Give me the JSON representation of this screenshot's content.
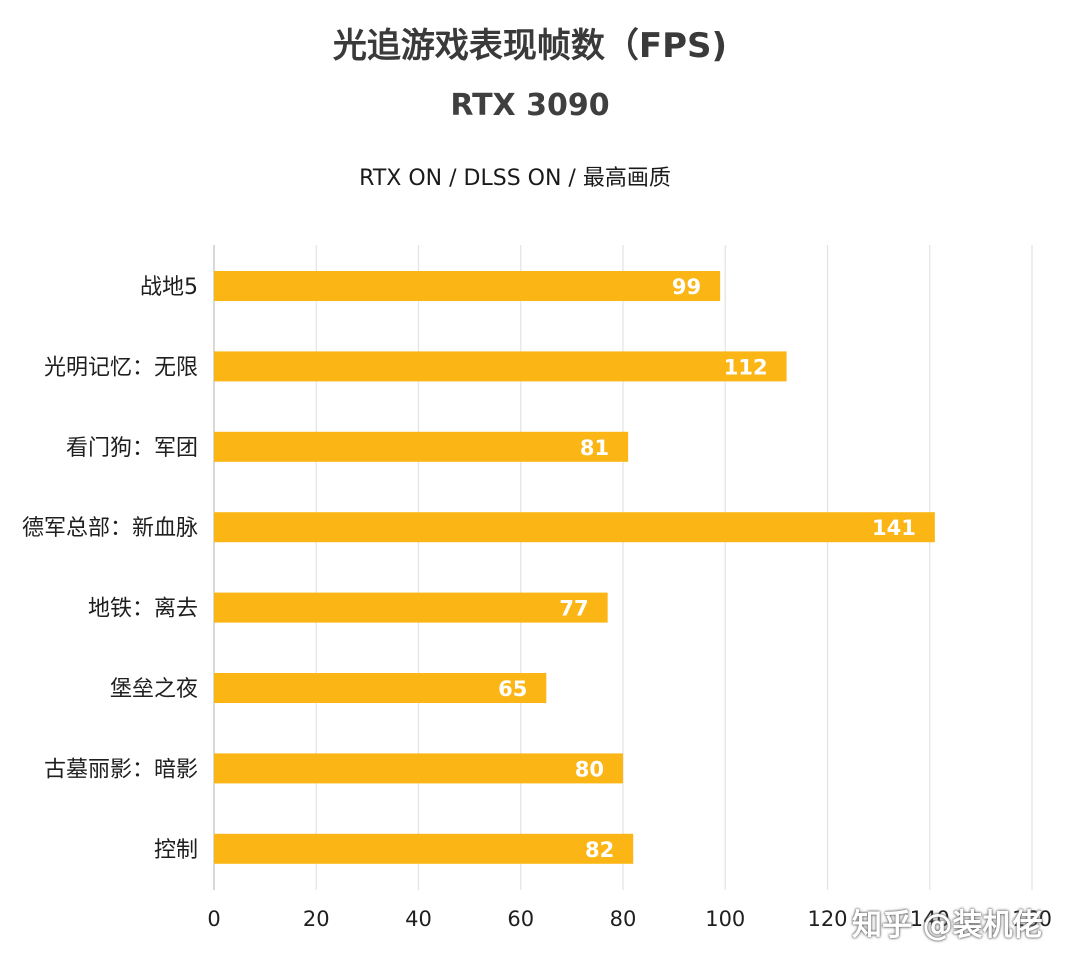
{
  "chart_data": {
    "type": "bar",
    "orientation": "horizontal",
    "title": "光追游戏表现帧数（FPS)",
    "subtitle": "RTX 3090",
    "caption": "RTX ON / DLSS ON / 最高画质",
    "categories": [
      "战地5",
      "光明记忆：无限",
      "看门狗：军团",
      "德军总部：新血脉",
      "地铁：离去",
      "堡垒之夜",
      "古墓丽影：暗影",
      "控制"
    ],
    "values": [
      99,
      112,
      81,
      141,
      77,
      65,
      80,
      82
    ],
    "xlim": [
      0,
      160
    ],
    "xticks": [
      "0",
      "20",
      "40",
      "60",
      "80",
      "100",
      "120",
      "140",
      "160"
    ],
    "grid": true,
    "bar_color": "#FBB616",
    "data_labels": true
  },
  "watermark": "知乎 @装机佬"
}
